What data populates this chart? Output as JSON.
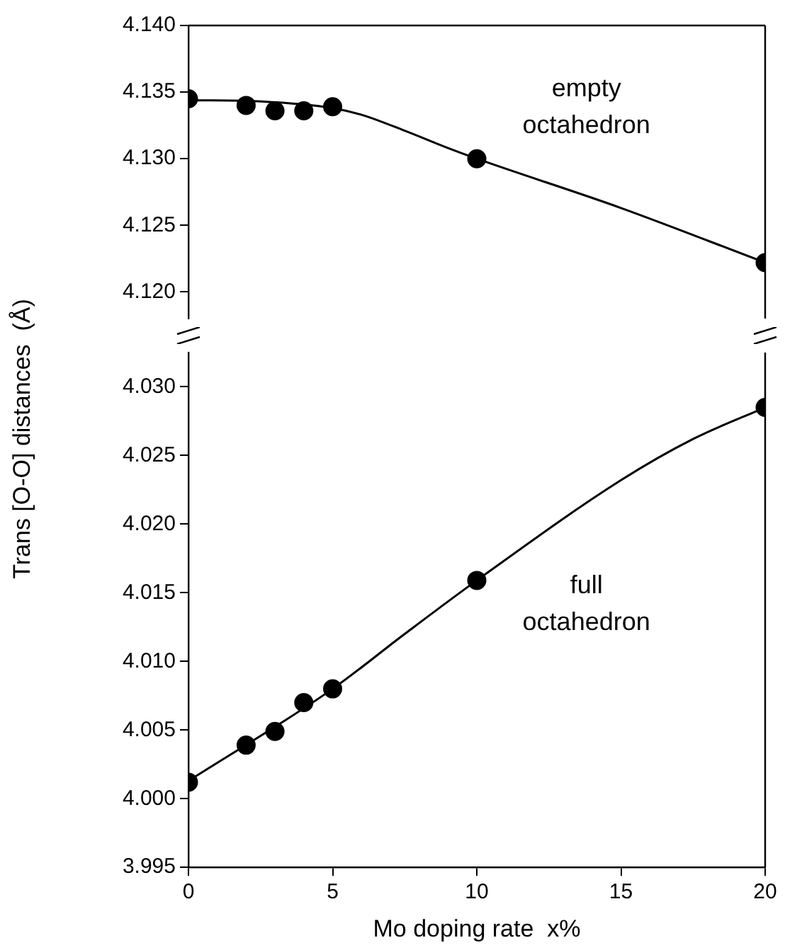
{
  "chart_data": [
    {
      "type": "scatter",
      "ylabel": "Trans [O-O] distances  (Å)",
      "xlim": [
        0,
        20
      ],
      "ylim": [
        4.118,
        4.14
      ],
      "yticks": [
        {
          "value": 4.12,
          "label": "4.120"
        },
        4.125,
        {
          "value": 4.13,
          "label": "4.130"
        },
        4.135,
        {
          "value": 4.14,
          "label": "4.140"
        }
      ],
      "tick_labels": "y",
      "grid": false,
      "marker": "circle",
      "annotations": [
        "empty octahedron"
      ],
      "series": [
        {
          "type": "scatter",
          "color": "#000000",
          "x": [
            0,
            2,
            3,
            4,
            5,
            10,
            20
          ],
          "values": [
            4.1345,
            4.134,
            4.1336,
            4.1336,
            4.1339,
            4.13,
            4.1222
          ]
        },
        {
          "type": "line",
          "color": "#000000",
          "marker": "none",
          "x": [
            0,
            2.5,
            5,
            6,
            7.5,
            9,
            10,
            15,
            20
          ],
          "values": [
            4.1344,
            4.1343,
            4.1338,
            4.1333,
            4.1321,
            4.1308,
            4.13,
            4.1263,
            4.1222
          ]
        }
      ]
    },
    {
      "type": "scatter",
      "xlabel": "Mo doping rate  x%",
      "xlim": [
        0,
        20
      ],
      "xticks": [
        0,
        5,
        10,
        15,
        20
      ],
      "ylim": [
        3.995,
        4.0325
      ],
      "yticks": [
        3.995,
        {
          "value": 4.0,
          "label": "4.000"
        },
        4.005,
        {
          "value": 4.01,
          "label": "4.010"
        },
        4.015,
        {
          "value": 4.02,
          "label": "4.020"
        },
        4.025,
        {
          "value": 4.03,
          "label": "4.030"
        }
      ],
      "grid": false,
      "marker": "circle",
      "annotations": [
        "full octahedron"
      ],
      "series": [
        {
          "type": "scatter",
          "color": "#000000",
          "x": [
            0,
            2,
            3,
            4,
            5,
            10,
            20
          ],
          "values": [
            4.0012,
            4.0039,
            4.0049,
            4.007,
            4.008,
            4.0159,
            4.0285
          ]
        },
        {
          "type": "line",
          "color": "#000000",
          "marker": "none",
          "x": [
            0,
            5,
            7.5,
            10,
            15,
            17.5,
            20
          ],
          "values": [
            4.0013,
            4.008,
            4.012,
            4.0159,
            4.0232,
            4.0262,
            4.0285
          ]
        }
      ]
    }
  ]
}
